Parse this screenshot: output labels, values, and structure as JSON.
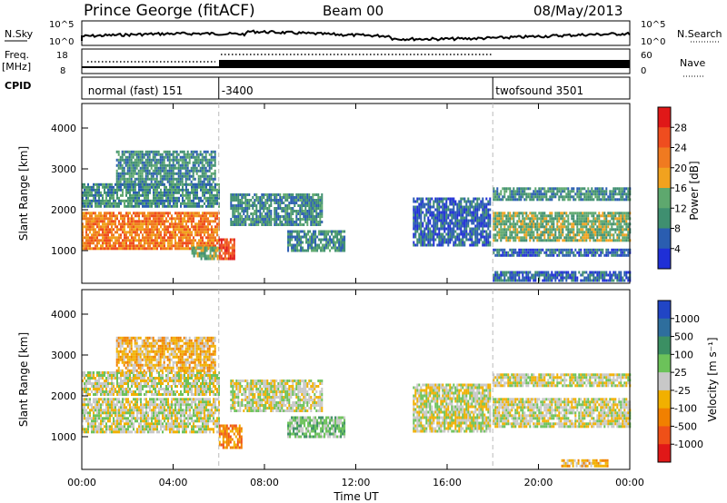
{
  "header": {
    "station": "Prince George (fitACF)",
    "beam": "Beam 00",
    "date": "08/May/2013"
  },
  "top_panels": {
    "left": {
      "nsky": "N.Sky",
      "freq": "Freq.",
      "mhz": "[MHz]",
      "cpid": "CPID"
    },
    "right": {
      "nsearch": "N.Search",
      "nave": "Nave"
    },
    "noise_ticks": {
      "upper": "10^5",
      "lower": "10^0",
      "upper_r": "10^5",
      "lower_r": "10^0"
    },
    "freq_ticks": {
      "upper": "18",
      "lower": "8"
    },
    "nave_ticks": {
      "upper": "60",
      "lower": "0"
    }
  },
  "cpid_labels": [
    {
      "text": "normal (fast) 151",
      "hour": 0.15
    },
    {
      "text": "-3400",
      "hour": 6.0
    },
    {
      "text": "twofsound 3501",
      "hour": 18.0
    }
  ],
  "colors": {
    "power": [
      "#1f2fd6",
      "#2a5db0",
      "#3f8f70",
      "#5ea86e",
      "#f1a21f",
      "#f07a20",
      "#ef4d1f",
      "#e01818"
    ],
    "velocity": [
      "#2145c5",
      "#2e6e9d",
      "#3b8f63",
      "#6cc25a",
      "#c8c8c8",
      "#f1b000",
      "#f18000",
      "#ef5018",
      "#e01818"
    ]
  },
  "chart_data": [
    {
      "type": "heatmap",
      "title": "Power",
      "xlabel": "",
      "ylabel": "Slant Range [km]",
      "xlim": [
        0,
        24
      ],
      "ylim": [
        200,
        4600
      ],
      "yticks": [
        "1000",
        "2000",
        "3000",
        "4000"
      ],
      "colorbar": {
        "label": "Power [dB]",
        "ticks": [
          "4",
          "8",
          "12",
          "16",
          "20",
          "24",
          "28"
        ],
        "range": [
          0,
          32
        ]
      },
      "regions": [
        {
          "h0": 0.0,
          "h1": 6.0,
          "r0": 1050,
          "r1": 1950,
          "level": 5
        },
        {
          "h0": 0.0,
          "h1": 6.0,
          "r0": 2050,
          "r1": 2650,
          "level": 2
        },
        {
          "h0": 1.5,
          "h1": 5.8,
          "r0": 2600,
          "r1": 3450,
          "level": 2
        },
        {
          "h0": 4.8,
          "h1": 6.0,
          "r0": 800,
          "r1": 1100,
          "level": 3
        },
        {
          "h0": 6.0,
          "h1": 6.7,
          "r0": 800,
          "r1": 1300,
          "level": 6
        },
        {
          "h0": 6.5,
          "h1": 10.5,
          "r0": 1600,
          "r1": 2400,
          "level": 2
        },
        {
          "h0": 9.0,
          "h1": 11.5,
          "r0": 1000,
          "r1": 1500,
          "level": 2
        },
        {
          "h0": 14.5,
          "h1": 17.9,
          "r0": 1100,
          "r1": 2300,
          "level": 1
        },
        {
          "h0": 18.0,
          "h1": 24.0,
          "r0": 1250,
          "r1": 1950,
          "level": 3
        },
        {
          "h0": 18.0,
          "h1": 24.0,
          "r0": 850,
          "r1": 1050,
          "level": 1
        },
        {
          "h0": 18.0,
          "h1": 24.0,
          "r0": 2250,
          "r1": 2550,
          "level": 2
        },
        {
          "h0": 18.0,
          "h1": 24.0,
          "r0": 250,
          "r1": 500,
          "level": 1
        }
      ]
    },
    {
      "type": "heatmap",
      "title": "Velocity",
      "xlabel": "Time UT",
      "ylabel": "Slant Range [km]",
      "xlim": [
        0,
        24
      ],
      "ylim": [
        200,
        4600
      ],
      "yticks": [
        "1000",
        "2000",
        "3000",
        "4000"
      ],
      "xticks": [
        "00:00",
        "04:00",
        "08:00",
        "12:00",
        "16:00",
        "20:00",
        "00:00"
      ],
      "colorbar": {
        "label": "Velocity [m s⁻¹]",
        "ticks": [
          "1000",
          "500",
          "100",
          "25",
          "-25",
          "-100",
          "-500",
          "-1000"
        ]
      },
      "regions": [
        {
          "h0": 0.0,
          "h1": 6.0,
          "r0": 1100,
          "r1": 1950,
          "level": 4
        },
        {
          "h0": 0.0,
          "h1": 6.0,
          "r0": 2050,
          "r1": 2600,
          "level": 4
        },
        {
          "h0": 1.5,
          "h1": 5.8,
          "r0": 2600,
          "r1": 3450,
          "level": 5
        },
        {
          "h0": 6.0,
          "h1": 7.0,
          "r0": 700,
          "r1": 1300,
          "level": 6
        },
        {
          "h0": 6.5,
          "h1": 10.5,
          "r0": 1600,
          "r1": 2400,
          "level": 4
        },
        {
          "h0": 9.0,
          "h1": 11.5,
          "r0": 1000,
          "r1": 1500,
          "level": 3
        },
        {
          "h0": 14.5,
          "h1": 17.9,
          "r0": 1100,
          "r1": 2300,
          "level": 4
        },
        {
          "h0": 18.0,
          "h1": 24.0,
          "r0": 1250,
          "r1": 1950,
          "level": 4
        },
        {
          "h0": 18.0,
          "h1": 24.0,
          "r0": 2250,
          "r1": 2550,
          "level": 4
        },
        {
          "h0": 21.0,
          "h1": 23.0,
          "r0": 250,
          "r1": 450,
          "level": 5
        }
      ]
    }
  ]
}
